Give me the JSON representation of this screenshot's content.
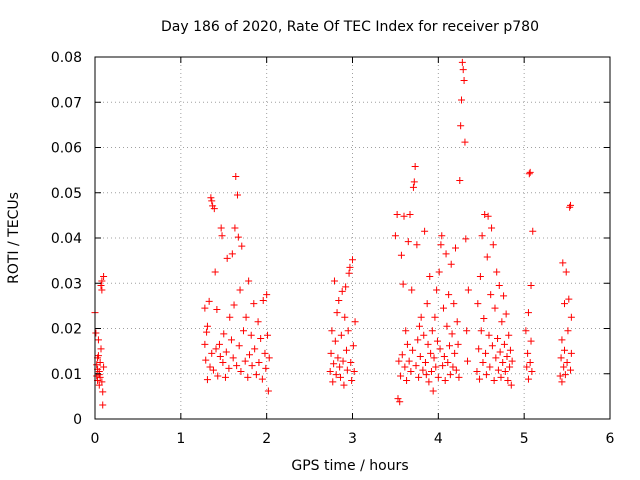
{
  "chart_data": {
    "type": "scatter",
    "title": "Day 186 of 2020, Rate Of TEC Index for receiver p780",
    "xlabel": "GPS time / hours",
    "ylabel": "ROTI / TECUs",
    "xlim": [
      0,
      6
    ],
    "ylim": [
      0,
      0.08
    ],
    "x_ticks": [
      0,
      1,
      2,
      3,
      4,
      5,
      6
    ],
    "x_tick_labels": [
      "0",
      "1",
      "2",
      "3",
      "4",
      "5",
      "6"
    ],
    "y_ticks": [
      0,
      0.01,
      0.02,
      0.03,
      0.04,
      0.05,
      0.06,
      0.07,
      0.08
    ],
    "y_tick_labels": [
      "0",
      "0.01",
      "0.02",
      "0.03",
      "0.04",
      "0.05",
      "0.06",
      "0.07",
      "0.08"
    ],
    "grid": true,
    "marker": "+",
    "color": "#ff0000",
    "series": [
      {
        "name": "ROTI",
        "points": [
          [
            0.0,
            0.0235
          ],
          [
            0.01,
            0.019
          ],
          [
            0.02,
            0.012
          ],
          [
            0.02,
            0.0095
          ],
          [
            0.03,
            0.0085
          ],
          [
            0.03,
            0.011
          ],
          [
            0.04,
            0.014
          ],
          [
            0.04,
            0.0175
          ],
          [
            0.05,
            0.0105
          ],
          [
            0.05,
            0.0075
          ],
          [
            0.06,
            0.0125
          ],
          [
            0.06,
            0.0092
          ],
          [
            0.07,
            0.0155
          ],
          [
            0.07,
            0.0295
          ],
          [
            0.08,
            0.0285
          ],
          [
            0.08,
            0.0305
          ],
          [
            0.09,
            0.006
          ],
          [
            0.09,
            0.0031
          ],
          [
            0.1,
            0.0315
          ],
          [
            0.1,
            0.0115
          ],
          [
            0.03,
            0.0135
          ],
          [
            0.05,
            0.0098
          ],
          [
            0.08,
            0.0082
          ],
          [
            1.28,
            0.0165
          ],
          [
            1.28,
            0.0245
          ],
          [
            1.29,
            0.013
          ],
          [
            1.3,
            0.0192
          ],
          [
            1.31,
            0.0205
          ],
          [
            1.31,
            0.0087
          ],
          [
            1.33,
            0.026
          ],
          [
            1.34,
            0.0115
          ],
          [
            1.35,
            0.0489
          ],
          [
            1.36,
            0.0482
          ],
          [
            1.36,
            0.0145
          ],
          [
            1.37,
            0.0471
          ],
          [
            1.38,
            0.0108
          ],
          [
            1.39,
            0.0465
          ],
          [
            1.4,
            0.0325
          ],
          [
            1.41,
            0.0155
          ],
          [
            1.42,
            0.0242
          ],
          [
            1.43,
            0.0095
          ],
          [
            1.45,
            0.0165
          ],
          [
            1.46,
            0.0138
          ],
          [
            1.47,
            0.0422
          ],
          [
            1.48,
            0.0405
          ],
          [
            1.49,
            0.0125
          ],
          [
            1.5,
            0.0188
          ],
          [
            1.52,
            0.0092
          ],
          [
            1.53,
            0.0148
          ],
          [
            1.54,
            0.0355
          ],
          [
            1.56,
            0.0112
          ],
          [
            1.57,
            0.0225
          ],
          [
            1.59,
            0.0175
          ],
          [
            1.6,
            0.0365
          ],
          [
            1.61,
            0.0135
          ],
          [
            1.62,
            0.0252
          ],
          [
            1.63,
            0.0422
          ],
          [
            1.64,
            0.0536
          ],
          [
            1.65,
            0.0118
          ],
          [
            1.66,
            0.0495
          ],
          [
            1.67,
            0.0402
          ],
          [
            1.68,
            0.0162
          ],
          [
            1.69,
            0.0285
          ],
          [
            1.7,
            0.0105
          ],
          [
            1.71,
            0.0382
          ],
          [
            1.73,
            0.0195
          ],
          [
            1.75,
            0.0128
          ],
          [
            1.76,
            0.0225
          ],
          [
            1.78,
            0.0092
          ],
          [
            1.79,
            0.0305
          ],
          [
            1.8,
            0.0142
          ],
          [
            1.82,
            0.0185
          ],
          [
            1.83,
            0.0118
          ],
          [
            1.85,
            0.0255
          ],
          [
            1.86,
            0.0155
          ],
          [
            1.88,
            0.0098
          ],
          [
            1.9,
            0.0215
          ],
          [
            1.91,
            0.0125
          ],
          [
            1.93,
            0.0178
          ],
          [
            1.95,
            0.0088
          ],
          [
            1.96,
            0.0262
          ],
          [
            1.98,
            0.0145
          ],
          [
            1.99,
            0.0112
          ],
          [
            2.0,
            0.0275
          ],
          [
            2.01,
            0.0185
          ],
          [
            2.02,
            0.0062
          ],
          [
            2.03,
            0.0135
          ],
          [
            2.74,
            0.0105
          ],
          [
            2.75,
            0.0145
          ],
          [
            2.76,
            0.0195
          ],
          [
            2.77,
            0.0082
          ],
          [
            2.78,
            0.0122
          ],
          [
            2.79,
            0.0305
          ],
          [
            2.8,
            0.0172
          ],
          [
            2.81,
            0.0098
          ],
          [
            2.82,
            0.0235
          ],
          [
            2.83,
            0.0135
          ],
          [
            2.84,
            0.0262
          ],
          [
            2.85,
            0.0115
          ],
          [
            2.86,
            0.0092
          ],
          [
            2.87,
            0.0185
          ],
          [
            2.88,
            0.0282
          ],
          [
            2.89,
            0.0128
          ],
          [
            2.9,
            0.0075
          ],
          [
            2.91,
            0.0225
          ],
          [
            2.92,
            0.0292
          ],
          [
            2.93,
            0.0152
          ],
          [
            2.94,
            0.0108
          ],
          [
            2.95,
            0.0195
          ],
          [
            2.96,
            0.0322
          ],
          [
            2.97,
            0.0335
          ],
          [
            2.98,
            0.0125
          ],
          [
            2.99,
            0.0085
          ],
          [
            3.0,
            0.0352
          ],
          [
            3.01,
            0.0162
          ],
          [
            3.02,
            0.0105
          ],
          [
            3.03,
            0.0215
          ],
          [
            3.5,
            0.0405
          ],
          [
            3.52,
            0.0452
          ],
          [
            3.53,
            0.0045
          ],
          [
            3.54,
            0.0128
          ],
          [
            3.55,
            0.0038
          ],
          [
            3.56,
            0.0095
          ],
          [
            3.57,
            0.0362
          ],
          [
            3.58,
            0.0142
          ],
          [
            3.59,
            0.0298
          ],
          [
            3.6,
            0.0448
          ],
          [
            3.61,
            0.0115
          ],
          [
            3.62,
            0.0195
          ],
          [
            3.63,
            0.0085
          ],
          [
            3.64,
            0.0165
          ],
          [
            3.65,
            0.0392
          ],
          [
            3.66,
            0.0128
          ],
          [
            3.67,
            0.0452
          ],
          [
            3.68,
            0.0105
          ],
          [
            3.69,
            0.0285
          ],
          [
            3.7,
            0.0152
          ],
          [
            3.71,
            0.0512
          ],
          [
            3.72,
            0.0524
          ],
          [
            3.73,
            0.0558
          ],
          [
            3.74,
            0.0118
          ],
          [
            3.75,
            0.0385
          ],
          [
            3.76,
            0.0175
          ],
          [
            3.77,
            0.0092
          ],
          [
            3.78,
            0.0205
          ],
          [
            3.79,
            0.0138
          ],
          [
            3.8,
            0.0225
          ],
          [
            3.82,
            0.0108
          ],
          [
            3.83,
            0.0185
          ],
          [
            3.84,
            0.0415
          ],
          [
            3.85,
            0.0125
          ],
          [
            3.86,
            0.0098
          ],
          [
            3.87,
            0.0255
          ],
          [
            3.88,
            0.0165
          ],
          [
            3.89,
            0.0082
          ],
          [
            3.9,
            0.0315
          ],
          [
            3.91,
            0.0145
          ],
          [
            3.92,
            0.0105
          ],
          [
            3.93,
            0.0195
          ],
          [
            3.94,
            0.0062
          ],
          [
            3.95,
            0.0135
          ],
          [
            3.96,
            0.0225
          ],
          [
            3.97,
            0.0115
          ],
          [
            3.98,
            0.0285
          ],
          [
            3.99,
            0.0172
          ],
          [
            4.0,
            0.0092
          ],
          [
            4.01,
            0.0325
          ],
          [
            4.02,
            0.0155
          ],
          [
            4.03,
            0.0385
          ],
          [
            4.04,
            0.0405
          ],
          [
            4.05,
            0.0118
          ],
          [
            4.06,
            0.0245
          ],
          [
            4.07,
            0.0138
          ],
          [
            4.08,
            0.0085
          ],
          [
            4.09,
            0.0365
          ],
          [
            4.1,
            0.0205
          ],
          [
            4.11,
            0.0125
          ],
          [
            4.12,
            0.0275
          ],
          [
            4.13,
            0.0162
          ],
          [
            4.14,
            0.0098
          ],
          [
            4.15,
            0.0342
          ],
          [
            4.16,
            0.0188
          ],
          [
            4.17,
            0.0115
          ],
          [
            4.18,
            0.0255
          ],
          [
            4.19,
            0.0145
          ],
          [
            4.2,
            0.0378
          ],
          [
            4.21,
            0.0108
          ],
          [
            4.22,
            0.0215
          ],
          [
            4.23,
            0.0165
          ],
          [
            4.24,
            0.0092
          ],
          [
            4.25,
            0.0527
          ],
          [
            4.26,
            0.0648
          ],
          [
            4.27,
            0.0705
          ],
          [
            4.28,
            0.0788
          ],
          [
            4.29,
            0.0772
          ],
          [
            4.3,
            0.0748
          ],
          [
            4.31,
            0.0612
          ],
          [
            4.32,
            0.0398
          ],
          [
            4.33,
            0.0195
          ],
          [
            4.34,
            0.0128
          ],
          [
            4.35,
            0.0285
          ],
          [
            4.45,
            0.0105
          ],
          [
            4.46,
            0.0255
          ],
          [
            4.47,
            0.0155
          ],
          [
            4.48,
            0.0088
          ],
          [
            4.49,
            0.0315
          ],
          [
            4.5,
            0.0195
          ],
          [
            4.51,
            0.0405
          ],
          [
            4.52,
            0.0125
          ],
          [
            4.53,
            0.0222
          ],
          [
            4.54,
            0.0452
          ],
          [
            4.55,
            0.0145
          ],
          [
            4.56,
            0.0098
          ],
          [
            4.57,
            0.0358
          ],
          [
            4.58,
            0.0448
          ],
          [
            4.59,
            0.0185
          ],
          [
            4.6,
            0.0115
          ],
          [
            4.61,
            0.0275
          ],
          [
            4.62,
            0.0422
          ],
          [
            4.63,
            0.0162
          ],
          [
            4.64,
            0.0385
          ],
          [
            4.65,
            0.0085
          ],
          [
            4.66,
            0.0245
          ],
          [
            4.67,
            0.0135
          ],
          [
            4.68,
            0.0325
          ],
          [
            4.69,
            0.0178
          ],
          [
            4.7,
            0.0108
          ],
          [
            4.71,
            0.0295
          ],
          [
            4.72,
            0.0148
          ],
          [
            4.73,
            0.0092
          ],
          [
            4.74,
            0.0215
          ],
          [
            4.75,
            0.0125
          ],
          [
            4.76,
            0.0272
          ],
          [
            4.77,
            0.0165
          ],
          [
            4.78,
            0.0105
          ],
          [
            4.79,
            0.0232
          ],
          [
            4.8,
            0.0138
          ],
          [
            4.81,
            0.0085
          ],
          [
            4.82,
            0.0185
          ],
          [
            4.83,
            0.0115
          ],
          [
            4.84,
            0.0152
          ],
          [
            4.85,
            0.0075
          ],
          [
            4.86,
            0.0128
          ],
          [
            5.02,
            0.0195
          ],
          [
            5.03,
            0.0115
          ],
          [
            5.04,
            0.0145
          ],
          [
            5.05,
            0.0088
          ],
          [
            5.05,
            0.0235
          ],
          [
            5.06,
            0.0542
          ],
          [
            5.07,
            0.0545
          ],
          [
            5.07,
            0.0125
          ],
          [
            5.08,
            0.0295
          ],
          [
            5.08,
            0.0172
          ],
          [
            5.09,
            0.0105
          ],
          [
            5.1,
            0.0415
          ],
          [
            5.42,
            0.0095
          ],
          [
            5.43,
            0.0135
          ],
          [
            5.44,
            0.0175
          ],
          [
            5.44,
            0.0082
          ],
          [
            5.45,
            0.0345
          ],
          [
            5.46,
            0.0115
          ],
          [
            5.47,
            0.0255
          ],
          [
            5.47,
            0.0152
          ],
          [
            5.48,
            0.0098
          ],
          [
            5.49,
            0.0325
          ],
          [
            5.5,
            0.0125
          ],
          [
            5.51,
            0.0195
          ],
          [
            5.52,
            0.0265
          ],
          [
            5.53,
            0.0468
          ],
          [
            5.54,
            0.0472
          ],
          [
            5.54,
            0.0108
          ],
          [
            5.55,
            0.0225
          ],
          [
            5.55,
            0.0145
          ]
        ]
      }
    ]
  }
}
